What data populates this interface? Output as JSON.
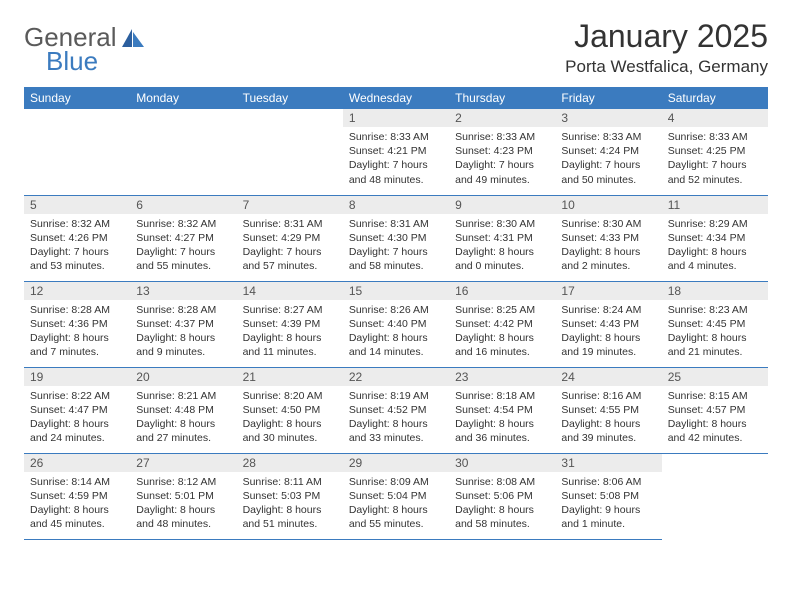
{
  "logo": {
    "text1": "General",
    "text2": "Blue"
  },
  "title": "January 2025",
  "location": "Porta Westfalica, Germany",
  "colors": {
    "header_bg": "#3b7bbf",
    "header_text": "#ffffff",
    "daynum_bg": "#ececec",
    "border": "#3b7bbf",
    "text": "#333333"
  },
  "weekdays": [
    "Sunday",
    "Monday",
    "Tuesday",
    "Wednesday",
    "Thursday",
    "Friday",
    "Saturday"
  ],
  "weeks": [
    [
      null,
      null,
      null,
      {
        "num": "1",
        "lines": [
          "Sunrise: 8:33 AM",
          "Sunset: 4:21 PM",
          "Daylight: 7 hours",
          "and 48 minutes."
        ]
      },
      {
        "num": "2",
        "lines": [
          "Sunrise: 8:33 AM",
          "Sunset: 4:23 PM",
          "Daylight: 7 hours",
          "and 49 minutes."
        ]
      },
      {
        "num": "3",
        "lines": [
          "Sunrise: 8:33 AM",
          "Sunset: 4:24 PM",
          "Daylight: 7 hours",
          "and 50 minutes."
        ]
      },
      {
        "num": "4",
        "lines": [
          "Sunrise: 8:33 AM",
          "Sunset: 4:25 PM",
          "Daylight: 7 hours",
          "and 52 minutes."
        ]
      }
    ],
    [
      {
        "num": "5",
        "lines": [
          "Sunrise: 8:32 AM",
          "Sunset: 4:26 PM",
          "Daylight: 7 hours",
          "and 53 minutes."
        ]
      },
      {
        "num": "6",
        "lines": [
          "Sunrise: 8:32 AM",
          "Sunset: 4:27 PM",
          "Daylight: 7 hours",
          "and 55 minutes."
        ]
      },
      {
        "num": "7",
        "lines": [
          "Sunrise: 8:31 AM",
          "Sunset: 4:29 PM",
          "Daylight: 7 hours",
          "and 57 minutes."
        ]
      },
      {
        "num": "8",
        "lines": [
          "Sunrise: 8:31 AM",
          "Sunset: 4:30 PM",
          "Daylight: 7 hours",
          "and 58 minutes."
        ]
      },
      {
        "num": "9",
        "lines": [
          "Sunrise: 8:30 AM",
          "Sunset: 4:31 PM",
          "Daylight: 8 hours",
          "and 0 minutes."
        ]
      },
      {
        "num": "10",
        "lines": [
          "Sunrise: 8:30 AM",
          "Sunset: 4:33 PM",
          "Daylight: 8 hours",
          "and 2 minutes."
        ]
      },
      {
        "num": "11",
        "lines": [
          "Sunrise: 8:29 AM",
          "Sunset: 4:34 PM",
          "Daylight: 8 hours",
          "and 4 minutes."
        ]
      }
    ],
    [
      {
        "num": "12",
        "lines": [
          "Sunrise: 8:28 AM",
          "Sunset: 4:36 PM",
          "Daylight: 8 hours",
          "and 7 minutes."
        ]
      },
      {
        "num": "13",
        "lines": [
          "Sunrise: 8:28 AM",
          "Sunset: 4:37 PM",
          "Daylight: 8 hours",
          "and 9 minutes."
        ]
      },
      {
        "num": "14",
        "lines": [
          "Sunrise: 8:27 AM",
          "Sunset: 4:39 PM",
          "Daylight: 8 hours",
          "and 11 minutes."
        ]
      },
      {
        "num": "15",
        "lines": [
          "Sunrise: 8:26 AM",
          "Sunset: 4:40 PM",
          "Daylight: 8 hours",
          "and 14 minutes."
        ]
      },
      {
        "num": "16",
        "lines": [
          "Sunrise: 8:25 AM",
          "Sunset: 4:42 PM",
          "Daylight: 8 hours",
          "and 16 minutes."
        ]
      },
      {
        "num": "17",
        "lines": [
          "Sunrise: 8:24 AM",
          "Sunset: 4:43 PM",
          "Daylight: 8 hours",
          "and 19 minutes."
        ]
      },
      {
        "num": "18",
        "lines": [
          "Sunrise: 8:23 AM",
          "Sunset: 4:45 PM",
          "Daylight: 8 hours",
          "and 21 minutes."
        ]
      }
    ],
    [
      {
        "num": "19",
        "lines": [
          "Sunrise: 8:22 AM",
          "Sunset: 4:47 PM",
          "Daylight: 8 hours",
          "and 24 minutes."
        ]
      },
      {
        "num": "20",
        "lines": [
          "Sunrise: 8:21 AM",
          "Sunset: 4:48 PM",
          "Daylight: 8 hours",
          "and 27 minutes."
        ]
      },
      {
        "num": "21",
        "lines": [
          "Sunrise: 8:20 AM",
          "Sunset: 4:50 PM",
          "Daylight: 8 hours",
          "and 30 minutes."
        ]
      },
      {
        "num": "22",
        "lines": [
          "Sunrise: 8:19 AM",
          "Sunset: 4:52 PM",
          "Daylight: 8 hours",
          "and 33 minutes."
        ]
      },
      {
        "num": "23",
        "lines": [
          "Sunrise: 8:18 AM",
          "Sunset: 4:54 PM",
          "Daylight: 8 hours",
          "and 36 minutes."
        ]
      },
      {
        "num": "24",
        "lines": [
          "Sunrise: 8:16 AM",
          "Sunset: 4:55 PM",
          "Daylight: 8 hours",
          "and 39 minutes."
        ]
      },
      {
        "num": "25",
        "lines": [
          "Sunrise: 8:15 AM",
          "Sunset: 4:57 PM",
          "Daylight: 8 hours",
          "and 42 minutes."
        ]
      }
    ],
    [
      {
        "num": "26",
        "lines": [
          "Sunrise: 8:14 AM",
          "Sunset: 4:59 PM",
          "Daylight: 8 hours",
          "and 45 minutes."
        ]
      },
      {
        "num": "27",
        "lines": [
          "Sunrise: 8:12 AM",
          "Sunset: 5:01 PM",
          "Daylight: 8 hours",
          "and 48 minutes."
        ]
      },
      {
        "num": "28",
        "lines": [
          "Sunrise: 8:11 AM",
          "Sunset: 5:03 PM",
          "Daylight: 8 hours",
          "and 51 minutes."
        ]
      },
      {
        "num": "29",
        "lines": [
          "Sunrise: 8:09 AM",
          "Sunset: 5:04 PM",
          "Daylight: 8 hours",
          "and 55 minutes."
        ]
      },
      {
        "num": "30",
        "lines": [
          "Sunrise: 8:08 AM",
          "Sunset: 5:06 PM",
          "Daylight: 8 hours",
          "and 58 minutes."
        ]
      },
      {
        "num": "31",
        "lines": [
          "Sunrise: 8:06 AM",
          "Sunset: 5:08 PM",
          "Daylight: 9 hours",
          "and 1 minute."
        ]
      },
      null
    ]
  ]
}
